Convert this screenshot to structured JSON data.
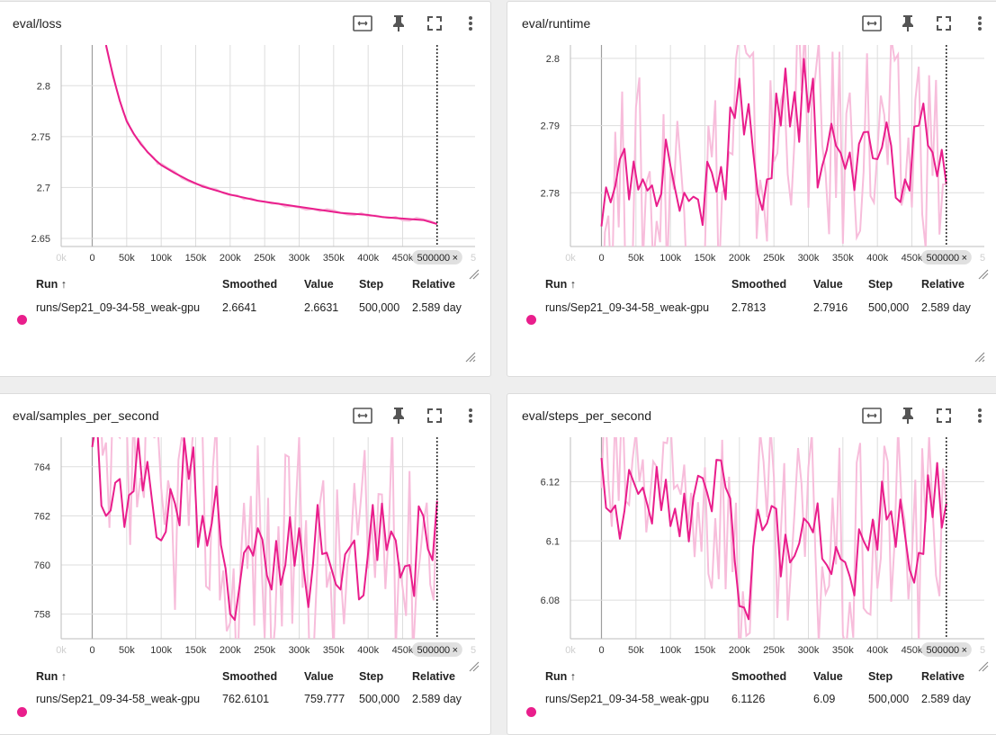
{
  "accent": "#e91e8c",
  "accent_light": "#f7bddb",
  "icons": [
    "fit-domain-icon",
    "pin-icon",
    "fullscreen-icon",
    "more-vert-icon"
  ],
  "table_headers": {
    "run": "Run ↑",
    "smoothed": "Smoothed",
    "value": "Value",
    "step": "Step",
    "relative": "Relative"
  },
  "step_badge": "500000",
  "step_badge_close": "×",
  "step_ticks_extra": {
    "left": "0k",
    "right": "5"
  },
  "cards": [
    {
      "title": "eval/loss",
      "row": {
        "run": "runs/Sep21_09-34-58_weak-gpu",
        "smoothed": "2.6641",
        "value": "2.6631",
        "step": "500,000",
        "relative": "2.589 day"
      }
    },
    {
      "title": "eval/runtime",
      "row": {
        "run": "runs/Sep21_09-34-58_weak-gpu",
        "smoothed": "2.7813",
        "value": "2.7916",
        "step": "500,000",
        "relative": "2.589 day"
      }
    },
    {
      "title": "eval/samples_per_second",
      "row": {
        "run": "runs/Sep21_09-34-58_weak-gpu",
        "smoothed": "762.6101",
        "value": "759.777",
        "step": "500,000",
        "relative": "2.589 day"
      }
    },
    {
      "title": "eval/steps_per_second",
      "row": {
        "run": "runs/Sep21_09-34-58_weak-gpu",
        "smoothed": "6.1126",
        "value": "6.09",
        "step": "500,000",
        "relative": "2.589 day"
      }
    }
  ],
  "chart_data": [
    {
      "type": "line",
      "xlabel": "",
      "ylabel": "",
      "xlim": [
        -45000,
        555000
      ],
      "ylim": [
        2.642,
        2.84
      ],
      "xticks": [
        0,
        50000,
        100000,
        150000,
        200000,
        250000,
        300000,
        350000,
        400000,
        450000
      ],
      "xtick_labels": [
        "0",
        "50k",
        "100k",
        "150k",
        "200k",
        "250k",
        "300k",
        "350k",
        "400k",
        "450k"
      ],
      "yticks": [
        2.65,
        2.7,
        2.75,
        2.8
      ],
      "ytick_labels": [
        "2.65",
        "2.7",
        "2.75",
        "2.8"
      ],
      "cursor_step": 500000,
      "grid": true,
      "x": [
        20000,
        30000,
        40000,
        50000,
        60000,
        70000,
        80000,
        90000,
        100000,
        120000,
        140000,
        160000,
        180000,
        200000,
        220000,
        240000,
        260000,
        280000,
        300000,
        320000,
        340000,
        360000,
        380000,
        400000,
        420000,
        440000,
        460000,
        480000,
        500000
      ],
      "series": [
        {
          "values": [
            2.84,
            2.81,
            2.785,
            2.765,
            2.753,
            2.743,
            2.735,
            2.728,
            2.722,
            2.714,
            2.707,
            2.701,
            2.697,
            2.693,
            2.69,
            2.687,
            2.685,
            2.683,
            2.681,
            2.679,
            2.677,
            2.675,
            2.674,
            2.673,
            2.671,
            2.67,
            2.669,
            2.668,
            2.6641
          ]
        }
      ]
    },
    {
      "type": "line",
      "xlabel": "",
      "ylabel": "",
      "xlim": [
        -45000,
        555000
      ],
      "ylim": [
        2.772,
        2.802
      ],
      "xticks": [
        0,
        50000,
        100000,
        150000,
        200000,
        250000,
        300000,
        350000,
        400000,
        450000
      ],
      "xtick_labels": [
        "0",
        "50k",
        "100k",
        "150k",
        "200k",
        "250k",
        "300k",
        "350k",
        "400k",
        "450k"
      ],
      "yticks": [
        2.78,
        2.79,
        2.8
      ],
      "ytick_labels": [
        "2.78",
        "2.79",
        "2.8"
      ],
      "cursor_step": 500000,
      "grid": true,
      "x": [
        0,
        20000,
        40000,
        60000,
        80000,
        100000,
        120000,
        140000,
        160000,
        180000,
        200000,
        220000,
        240000,
        260000,
        280000,
        300000,
        320000,
        340000,
        360000,
        380000,
        400000,
        420000,
        440000,
        460000,
        480000,
        500000
      ],
      "series": [
        {
          "values": [
            2.775,
            2.781,
            2.779,
            2.782,
            2.778,
            2.784,
            2.78,
            2.779,
            2.783,
            2.779,
            2.797,
            2.786,
            2.782,
            2.79,
            2.795,
            2.792,
            2.784,
            2.787,
            2.786,
            2.789,
            2.785,
            2.787,
            2.782,
            2.79,
            2.786,
            2.7813
          ]
        }
      ]
    },
    {
      "type": "line",
      "xlabel": "",
      "ylabel": "",
      "xlim": [
        -45000,
        555000
      ],
      "ylim": [
        757,
        765.2
      ],
      "xticks": [
        0,
        50000,
        100000,
        150000,
        200000,
        250000,
        300000,
        350000,
        400000,
        450000
      ],
      "xtick_labels": [
        "0",
        "50k",
        "100k",
        "150k",
        "200k",
        "250k",
        "300k",
        "350k",
        "400k",
        "450k"
      ],
      "yticks": [
        758,
        760,
        762,
        764
      ],
      "ytick_labels": [
        "758",
        "760",
        "762",
        "764"
      ],
      "cursor_step": 500000,
      "grid": true,
      "x": [
        0,
        20000,
        40000,
        60000,
        80000,
        100000,
        120000,
        140000,
        160000,
        180000,
        200000,
        220000,
        240000,
        260000,
        280000,
        300000,
        320000,
        340000,
        360000,
        380000,
        400000,
        420000,
        440000,
        460000,
        480000,
        500000
      ],
      "series": [
        {
          "values": [
            764.8,
            762,
            763.5,
            763,
            764.2,
            761,
            762.5,
            763.5,
            762,
            763.2,
            758,
            760.5,
            761.5,
            759,
            760,
            761.5,
            760,
            760.5,
            759,
            761,
            760.5,
            762.5,
            761,
            760,
            762,
            762.61
          ]
        }
      ]
    },
    {
      "type": "line",
      "xlabel": "",
      "ylabel": "",
      "xlim": [
        -45000,
        555000
      ],
      "ylim": [
        6.067,
        6.135
      ],
      "xticks": [
        0,
        50000,
        100000,
        150000,
        200000,
        250000,
        300000,
        350000,
        400000,
        450000
      ],
      "xtick_labels": [
        "0",
        "50k",
        "100k",
        "150k",
        "200k",
        "250k",
        "300k",
        "350k",
        "400k",
        "450k"
      ],
      "yticks": [
        6.08,
        6.1,
        6.12
      ],
      "ytick_labels": [
        "6.08",
        "6.1",
        "6.12"
      ],
      "cursor_step": 500000,
      "grid": true,
      "x": [
        0,
        20000,
        40000,
        60000,
        80000,
        100000,
        120000,
        140000,
        160000,
        180000,
        200000,
        220000,
        240000,
        260000,
        280000,
        300000,
        320000,
        340000,
        360000,
        380000,
        400000,
        420000,
        440000,
        460000,
        480000,
        500000
      ],
      "series": [
        {
          "values": [
            6.128,
            6.112,
            6.124,
            6.118,
            6.125,
            6.105,
            6.116,
            6.122,
            6.11,
            6.118,
            6.078,
            6.098,
            6.106,
            6.088,
            6.095,
            6.106,
            6.094,
            6.098,
            6.088,
            6.1,
            6.097,
            6.11,
            6.102,
            6.096,
            6.108,
            6.1126
          ]
        }
      ]
    }
  ]
}
